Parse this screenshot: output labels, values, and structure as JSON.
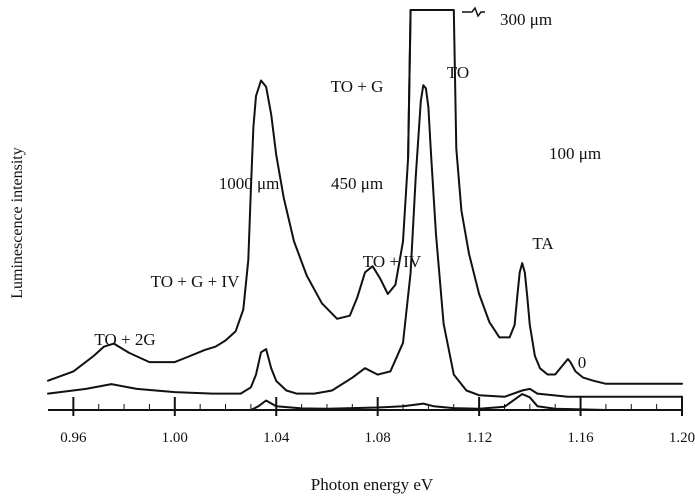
{
  "chart_data": {
    "type": "line",
    "xlabel": "Photon energy eV",
    "ylabel": "Luminescence intensity",
    "xlim": [
      0.95,
      1.2
    ],
    "x_ticks": [
      "0.96",
      "1.00",
      "1.04",
      "1.08",
      "1.12",
      "1.16",
      "1.20"
    ],
    "series": [
      {
        "name": "1000 μm",
        "x": [
          0.95,
          0.96,
          0.968,
          0.972,
          0.976,
          0.982,
          0.99,
          1.0,
          1.006,
          1.012,
          1.016,
          1.02,
          1.024,
          1.027,
          1.029,
          1.03,
          1.031,
          1.032,
          1.034,
          1.036,
          1.038,
          1.04,
          1.043,
          1.047,
          1.052,
          1.058,
          1.064,
          1.069,
          1.072,
          1.075,
          1.078,
          1.081,
          1.084,
          1.087,
          1.09,
          1.092,
          1.093
        ],
        "y": [
          0.03,
          0.06,
          0.11,
          0.14,
          0.15,
          0.12,
          0.09,
          0.09,
          0.11,
          0.13,
          0.14,
          0.16,
          0.19,
          0.26,
          0.42,
          0.65,
          0.85,
          0.95,
          1.0,
          0.98,
          0.89,
          0.76,
          0.62,
          0.48,
          0.37,
          0.28,
          0.23,
          0.24,
          0.3,
          0.38,
          0.4,
          0.36,
          0.31,
          0.34,
          0.48,
          0.75,
          1.2
        ]
      },
      {
        "name": "300 μm",
        "x": [
          1.092,
          1.093,
          1.11,
          1.111,
          1.113,
          1.116,
          1.12,
          1.124,
          1.128,
          1.132,
          1.134,
          1.135,
          1.136,
          1.137,
          1.138,
          1.139,
          1.14,
          1.142,
          1.144,
          1.147,
          1.15,
          1.152,
          1.154,
          1.155,
          1.156,
          1.158,
          1.161,
          1.165,
          1.17,
          1.18,
          1.2
        ],
        "y": [
          0.75,
          1.2,
          1.2,
          0.78,
          0.58,
          0.44,
          0.31,
          0.22,
          0.17,
          0.17,
          0.21,
          0.3,
          0.38,
          0.41,
          0.38,
          0.3,
          0.21,
          0.11,
          0.07,
          0.05,
          0.05,
          0.07,
          0.09,
          0.1,
          0.09,
          0.06,
          0.04,
          0.03,
          0.02,
          0.02,
          0.02
        ]
      },
      {
        "name": "450 μm",
        "x": [
          0.95,
          0.965,
          0.975,
          0.985,
          1.0,
          1.015,
          1.026,
          1.03,
          1.032,
          1.034,
          1.036,
          1.038,
          1.04,
          1.044,
          1.048,
          1.055,
          1.062,
          1.07,
          1.075,
          1.08,
          1.085,
          1.09,
          1.093,
          1.095,
          1.097,
          1.098,
          1.099,
          1.1,
          1.101,
          1.103,
          1.106,
          1.11,
          1.115,
          1.12,
          1.13,
          1.137,
          1.14,
          1.143,
          1.155,
          1.17,
          1.2
        ],
        "y": [
          0.02,
          0.035,
          0.05,
          0.035,
          0.025,
          0.02,
          0.02,
          0.04,
          0.08,
          0.15,
          0.16,
          0.1,
          0.06,
          0.03,
          0.02,
          0.02,
          0.03,
          0.07,
          0.1,
          0.08,
          0.09,
          0.18,
          0.4,
          0.7,
          0.94,
          0.99,
          0.98,
          0.92,
          0.78,
          0.52,
          0.24,
          0.08,
          0.03,
          0.015,
          0.01,
          0.03,
          0.035,
          0.02,
          0.01,
          0.01,
          0.01
        ]
      },
      {
        "name": "100 μm",
        "x": [
          1.03,
          1.033,
          1.036,
          1.04,
          1.05,
          1.06,
          1.07,
          1.08,
          1.09,
          1.098,
          1.102,
          1.11,
          1.12,
          1.13,
          1.137,
          1.14,
          1.143,
          1.15,
          1.16,
          1.17
        ],
        "y": [
          0.0,
          0.012,
          0.03,
          0.012,
          0.005,
          0.004,
          0.006,
          0.008,
          0.012,
          0.02,
          0.012,
          0.006,
          0.004,
          0.01,
          0.05,
          0.04,
          0.012,
          0.004,
          0.002,
          0.0
        ]
      }
    ],
    "annotations": [
      "TO + 2G",
      "TO + G + IV",
      "TO + G",
      "TO + IV",
      "TO",
      "TA",
      "0",
      "1000 μm",
      "450 μm",
      "300 μm",
      "100 μm"
    ]
  }
}
